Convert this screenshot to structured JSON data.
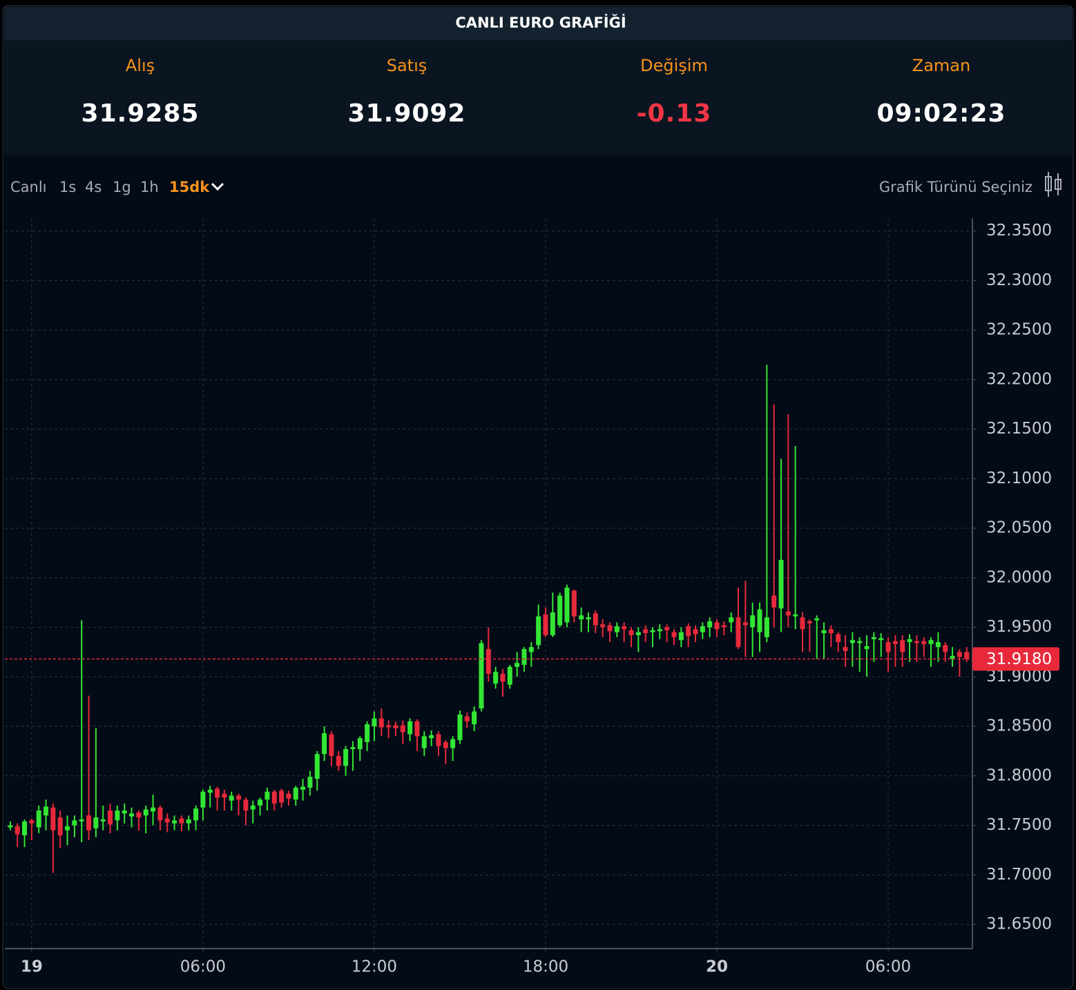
{
  "header": {
    "title": "CANLI EURO GRAFİĞİ"
  },
  "quotes": [
    {
      "label": "Alış",
      "value": "31.9285"
    },
    {
      "label": "Satış",
      "value": "31.9092"
    },
    {
      "label": "Değişim",
      "value": "-0.13"
    },
    {
      "label": "Zaman",
      "value": "09:02:23"
    }
  ],
  "toolbar": {
    "intervals": [
      "Canlı",
      "1s",
      "4s",
      "1g",
      "1h",
      "15dk"
    ],
    "chart_type_label": "Grafik Türünü Seçiniz"
  },
  "chart_data": {
    "type": "candlestick",
    "up_color": "#33e634",
    "down_color": "#e8293b",
    "grid": true,
    "xlim": [
      -0.94,
      32.95
    ],
    "xticks": [
      {
        "value": 0,
        "label": "19"
      },
      {
        "value": 6,
        "label": "06:00"
      },
      {
        "value": 12,
        "label": "12:00"
      },
      {
        "value": 18,
        "label": "18:00"
      },
      {
        "value": 24,
        "label": "20"
      },
      {
        "value": 30,
        "label": "06:00"
      }
    ],
    "ylim": [
      31.627,
      32.363
    ],
    "yticks": [
      {
        "value": 31.65,
        "label": "31.6500"
      },
      {
        "value": 31.7,
        "label": "31.7000"
      },
      {
        "value": 31.75,
        "label": "31.7500"
      },
      {
        "value": 31.8,
        "label": "31.8000"
      },
      {
        "value": 31.85,
        "label": "31.8500"
      },
      {
        "value": 31.9,
        "label": "31.9000"
      },
      {
        "value": 31.95,
        "label": "31.9500"
      },
      {
        "value": 32,
        "label": "32.0000"
      },
      {
        "value": 32.05,
        "label": "32.0500"
      },
      {
        "value": 32.1,
        "label": "32.1000"
      },
      {
        "value": 32.15,
        "label": "32.1500"
      },
      {
        "value": 32.2,
        "label": "32.2000"
      },
      {
        "value": 32.25,
        "label": "32.2500"
      },
      {
        "value": 32.3,
        "label": "32.3000"
      },
      {
        "value": 32.35,
        "label": "32.3500"
      }
    ],
    "last_price": {
      "value": 31.918,
      "label": "31.9180"
    },
    "x": [
      -0.75,
      -0.5,
      -0.25,
      0,
      0.25,
      0.5,
      0.75,
      1,
      1.25,
      1.5,
      1.75,
      2,
      2.25,
      2.5,
      2.75,
      3,
      3.25,
      3.5,
      3.75,
      4,
      4.25,
      4.5,
      4.75,
      5,
      5.25,
      5.5,
      5.75,
      6,
      6.25,
      6.5,
      6.75,
      7,
      7.25,
      7.5,
      7.75,
      8,
      8.25,
      8.5,
      8.75,
      9,
      9.25,
      9.5,
      9.75,
      10,
      10.25,
      10.5,
      10.75,
      11,
      11.25,
      11.5,
      11.75,
      12,
      12.25,
      12.5,
      12.75,
      13,
      13.25,
      13.5,
      13.75,
      14,
      14.25,
      14.5,
      14.75,
      15,
      15.25,
      15.5,
      15.75,
      16,
      16.25,
      16.5,
      16.75,
      17,
      17.25,
      17.5,
      17.75,
      18,
      18.25,
      18.5,
      18.75,
      19,
      19.25,
      19.5,
      19.75,
      20,
      20.25,
      20.5,
      20.75,
      21,
      21.25,
      21.5,
      21.75,
      22,
      22.25,
      22.5,
      22.75,
      23,
      23.25,
      23.5,
      23.75,
      24,
      24.25,
      24.5,
      24.75,
      25,
      25.25,
      25.5,
      25.75,
      26,
      26.25,
      26.5,
      26.75,
      27,
      27.25,
      27.5,
      27.75,
      28,
      28.25,
      28.5,
      28.75,
      29,
      29.25,
      29.5,
      29.75,
      30,
      30.25,
      30.5,
      30.75,
      31,
      31.25,
      31.5,
      31.75,
      32,
      32.25,
      32.5,
      32.75
    ],
    "open": [
      31.748,
      31.749,
      31.74,
      31.755,
      31.748,
      31.76,
      31.768,
      31.758,
      31.745,
      31.75,
      31.754,
      31.76,
      31.747,
      31.754,
      31.765,
      31.755,
      31.762,
      31.759,
      31.763,
      31.76,
      31.764,
      31.768,
      31.757,
      31.752,
      31.757,
      31.752,
      31.755,
      31.768,
      31.783,
      31.787,
      31.782,
      31.775,
      31.78,
      31.776,
      31.766,
      31.77,
      31.776,
      31.784,
      31.785,
      31.782,
      31.776,
      31.786,
      31.788,
      31.797,
      31.822,
      31.842,
      31.82,
      31.81,
      31.827,
      31.827,
      31.834,
      31.85,
      31.858,
      31.851,
      31.851,
      31.851,
      31.842,
      31.855,
      31.828,
      31.838,
      31.842,
      31.834,
      31.828,
      31.836,
      31.86,
      31.852,
      31.868,
      31.928,
      31.893,
      31.903,
      31.892,
      31.91,
      31.912,
      31.925,
      31.932,
      31.963,
      31.942,
      31.952,
      31.955,
      31.987,
      31.958,
      31.958,
      31.964,
      31.953,
      31.952,
      31.945,
      31.951,
      31.947,
      31.942,
      31.948,
      31.945,
      31.946,
      31.95,
      31.945,
      31.937,
      31.951,
      31.948,
      31.945,
      31.95,
      31.955,
      31.952,
      31.955,
      31.96,
      31.955,
      31.95,
      31.945,
      31.94,
      31.982,
      31.969,
      31.966,
      31.961,
      31.96,
      31.956,
      31.957,
      31.944,
      31.948,
      31.943,
      31.93,
      31.934,
      31.934,
      31.928,
      31.938,
      31.937,
      31.935,
      31.936,
      31.937,
      31.935,
      31.936,
      31.936,
      31.933,
      31.93,
      31.932,
      31.918,
      31.925,
      31.925
    ],
    "high": [
      31.754,
      31.752,
      31.756,
      31.757,
      31.77,
      31.776,
      31.772,
      31.765,
      31.76,
      31.76,
      31.957,
      31.881,
      31.848,
      31.77,
      31.772,
      31.77,
      31.772,
      31.768,
      31.765,
      31.77,
      31.781,
      31.77,
      31.762,
      31.76,
      31.76,
      31.76,
      31.77,
      31.786,
      31.79,
      31.789,
      31.786,
      31.784,
      31.782,
      31.778,
      31.775,
      31.778,
      31.788,
      31.786,
      31.787,
      31.785,
      31.79,
      31.797,
      31.805,
      31.825,
      31.85,
      31.845,
      31.825,
      31.83,
      31.835,
      31.84,
      31.855,
      31.865,
      31.868,
      31.856,
      31.855,
      31.856,
      31.858,
      31.857,
      31.845,
      31.846,
      31.845,
      31.836,
      31.84,
      31.866,
      31.864,
      31.87,
      31.937,
      31.95,
      31.91,
      31.908,
      31.912,
      31.925,
      31.93,
      31.935,
      31.973,
      31.97,
      31.985,
      31.985,
      31.993,
      31.988,
      31.97,
      31.965,
      31.967,
      31.958,
      31.955,
      31.955,
      31.955,
      31.95,
      31.95,
      31.952,
      31.95,
      31.953,
      31.953,
      31.948,
      31.95,
      31.954,
      31.952,
      31.955,
      31.96,
      31.958,
      31.956,
      31.965,
      31.99,
      31.997,
      31.975,
      31.975,
      32.215,
      32.175,
      32.12,
      32.165,
      32.133,
      31.965,
      31.958,
      31.962,
      31.955,
      31.952,
      31.945,
      31.942,
      31.945,
      31.94,
      31.942,
      31.945,
      31.944,
      31.94,
      31.942,
      31.942,
      31.943,
      31.942,
      31.94,
      31.94,
      31.945,
      31.935,
      31.93,
      31.928,
      31.93
    ],
    "low": [
      31.745,
      31.728,
      31.728,
      31.735,
      31.742,
      31.745,
      31.702,
      31.727,
      31.73,
      31.738,
      31.733,
      31.735,
      31.738,
      31.745,
      31.742,
      31.745,
      31.752,
      31.748,
      31.745,
      31.742,
      31.75,
      31.745,
      31.743,
      31.745,
      31.744,
      31.745,
      31.745,
      31.755,
      31.768,
      31.765,
      31.765,
      31.765,
      31.76,
      31.75,
      31.752,
      31.76,
      31.765,
      31.765,
      31.768,
      31.77,
      31.77,
      31.775,
      31.78,
      31.785,
      31.815,
      31.81,
      31.805,
      31.8,
      31.805,
      31.815,
      31.825,
      31.835,
      31.84,
      31.838,
      31.84,
      31.832,
      31.835,
      31.825,
      31.82,
      31.83,
      31.82,
      31.812,
      31.815,
      31.832,
      31.848,
      31.845,
      31.865,
      31.895,
      31.888,
      31.88,
      31.888,
      31.9,
      31.905,
      31.91,
      31.928,
      31.94,
      31.94,
      31.95,
      31.95,
      31.955,
      31.945,
      31.945,
      31.944,
      31.94,
      31.935,
      31.94,
      31.935,
      31.93,
      31.925,
      31.935,
      31.93,
      31.938,
      31.935,
      31.932,
      31.93,
      31.93,
      31.935,
      31.938,
      31.94,
      31.94,
      31.942,
      31.945,
      31.928,
      31.92,
      31.92,
      31.925,
      31.935,
      31.95,
      31.945,
      31.95,
      31.948,
      31.925,
      31.925,
      31.918,
      31.918,
      31.93,
      31.925,
      31.91,
      31.91,
      31.905,
      31.9,
      31.915,
      31.92,
      31.905,
      31.91,
      31.91,
      31.915,
      31.915,
      31.92,
      31.91,
      31.915,
      31.915,
      31.91,
      31.9,
      31.915
    ],
    "close": [
      31.75,
      31.741,
      31.754,
      31.752,
      31.765,
      31.769,
      31.745,
      31.74,
      31.749,
      31.755,
      31.756,
      31.745,
      31.758,
      31.756,
      31.751,
      31.765,
      31.765,
      31.762,
      31.758,
      31.766,
      31.768,
      31.755,
      31.753,
      31.755,
      31.752,
      31.756,
      31.767,
      31.784,
      31.786,
      31.778,
      31.778,
      31.78,
      31.776,
      31.765,
      31.77,
      31.776,
      31.784,
      31.772,
      31.773,
      31.777,
      31.788,
      31.789,
      31.799,
      31.822,
      31.843,
      31.82,
      31.81,
      31.827,
      31.829,
      31.838,
      31.852,
      31.858,
      31.849,
      31.849,
      31.848,
      31.844,
      31.855,
      31.84,
      31.84,
      31.841,
      31.83,
      31.828,
      31.837,
      31.862,
      31.855,
      31.865,
      31.934,
      31.903,
      31.905,
      31.895,
      31.91,
      31.914,
      31.928,
      31.93,
      31.961,
      31.942,
      31.965,
      31.982,
      31.99,
      31.961,
      31.962,
      31.96,
      31.952,
      31.95,
      31.946,
      31.951,
      31.948,
      31.942,
      31.945,
      31.944,
      31.947,
      31.948,
      31.947,
      31.94,
      31.945,
      31.941,
      31.943,
      31.951,
      31.956,
      31.948,
      31.95,
      31.96,
      31.93,
      31.952,
      31.962,
      31.968,
      31.96,
      31.97,
      32.018,
      31.962,
      31.963,
      31.948,
      31.954,
      31.959,
      31.947,
      31.944,
      31.935,
      31.926,
      31.937,
      31.936,
      31.931,
      31.94,
      31.939,
      31.925,
      31.933,
      31.925,
      31.938,
      31.934,
      31.933,
      31.937,
      31.935,
      31.925,
      31.921,
      31.92,
      31.918
    ]
  }
}
